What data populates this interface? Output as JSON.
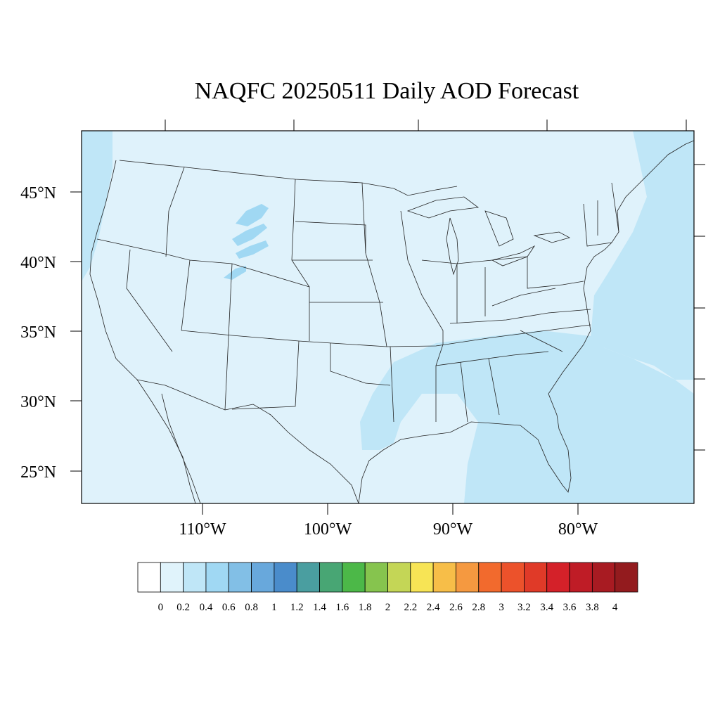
{
  "map": {
    "title": "NAQFC 20250511 Daily AOD Forecast",
    "lat_labels": [
      "45°N",
      "40°N",
      "35°N",
      "30°N",
      "25°N"
    ],
    "lon_labels": [
      "110°W",
      "100°W",
      "90°W",
      "80°W"
    ],
    "colorbar": {
      "levels": [
        "0",
        "0.2",
        "0.4",
        "0.6",
        "0.8",
        "1",
        "1.2",
        "1.4",
        "1.6",
        "1.8",
        "2",
        "2.2",
        "2.4",
        "2.6",
        "2.8",
        "3",
        "3.2",
        "3.4",
        "3.6",
        "3.8",
        "4"
      ],
      "colors": [
        "#ffffff",
        "#e0f3fb",
        "#bfe6f7",
        "#a0d8f3",
        "#82bfe6",
        "#68a8dc",
        "#4a8ccb",
        "#4a9ea0",
        "#48a674",
        "#4cb848",
        "#86c44e",
        "#c4d656",
        "#f7e455",
        "#f7be48",
        "#f59940",
        "#f26a2d",
        "#ec522b",
        "#e03a28",
        "#d42129",
        "#bf1c26",
        "#a81b22",
        "#931b1e"
      ]
    }
  }
}
